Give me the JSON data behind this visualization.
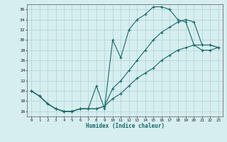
{
  "xlabel": "Humidex (Indice chaleur)",
  "bg_color": "#d6eef0",
  "grid_color": "#b0d0d0",
  "line_color": "#1a6868",
  "xlim": [
    -0.5,
    23.5
  ],
  "ylim": [
    15,
    37
  ],
  "yticks": [
    16,
    18,
    20,
    22,
    24,
    26,
    28,
    30,
    32,
    34,
    36
  ],
  "xticks": [
    0,
    1,
    2,
    3,
    4,
    5,
    6,
    7,
    8,
    9,
    10,
    11,
    12,
    13,
    14,
    15,
    16,
    17,
    18,
    19,
    20,
    21,
    22,
    23
  ],
  "line1_x": [
    0,
    1,
    2,
    3,
    4,
    5,
    6,
    7,
    8,
    9,
    10,
    11,
    12,
    13,
    14,
    15,
    16,
    17,
    18,
    19,
    20,
    21,
    22,
    23
  ],
  "line1_y": [
    20.0,
    19.0,
    17.5,
    16.5,
    16.0,
    16.0,
    16.5,
    16.5,
    21.0,
    16.5,
    30.0,
    26.5,
    32.0,
    34.0,
    35.0,
    36.5,
    36.5,
    36.0,
    34.0,
    33.5,
    29.0,
    29.0,
    29.0,
    28.5
  ],
  "line2_x": [
    0,
    1,
    2,
    3,
    4,
    5,
    6,
    7,
    8,
    9,
    10,
    11,
    12,
    13,
    14,
    15,
    16,
    17,
    18,
    19,
    20,
    21,
    22,
    23
  ],
  "line2_y": [
    20.0,
    19.0,
    17.5,
    16.5,
    16.0,
    16.0,
    16.5,
    16.5,
    16.5,
    17.0,
    20.5,
    22.0,
    24.0,
    26.0,
    28.0,
    30.0,
    31.5,
    32.5,
    33.5,
    34.0,
    33.5,
    29.0,
    29.0,
    28.5
  ],
  "line3_x": [
    0,
    1,
    2,
    3,
    4,
    5,
    6,
    7,
    8,
    9,
    10,
    11,
    12,
    13,
    14,
    15,
    16,
    17,
    18,
    19,
    20,
    21,
    22,
    23
  ],
  "line3_y": [
    20.0,
    19.0,
    17.5,
    16.5,
    16.0,
    16.0,
    16.5,
    16.5,
    16.5,
    17.0,
    18.5,
    19.5,
    21.0,
    22.5,
    23.5,
    24.5,
    26.0,
    27.0,
    28.0,
    28.5,
    29.0,
    28.0,
    28.0,
    28.5
  ]
}
